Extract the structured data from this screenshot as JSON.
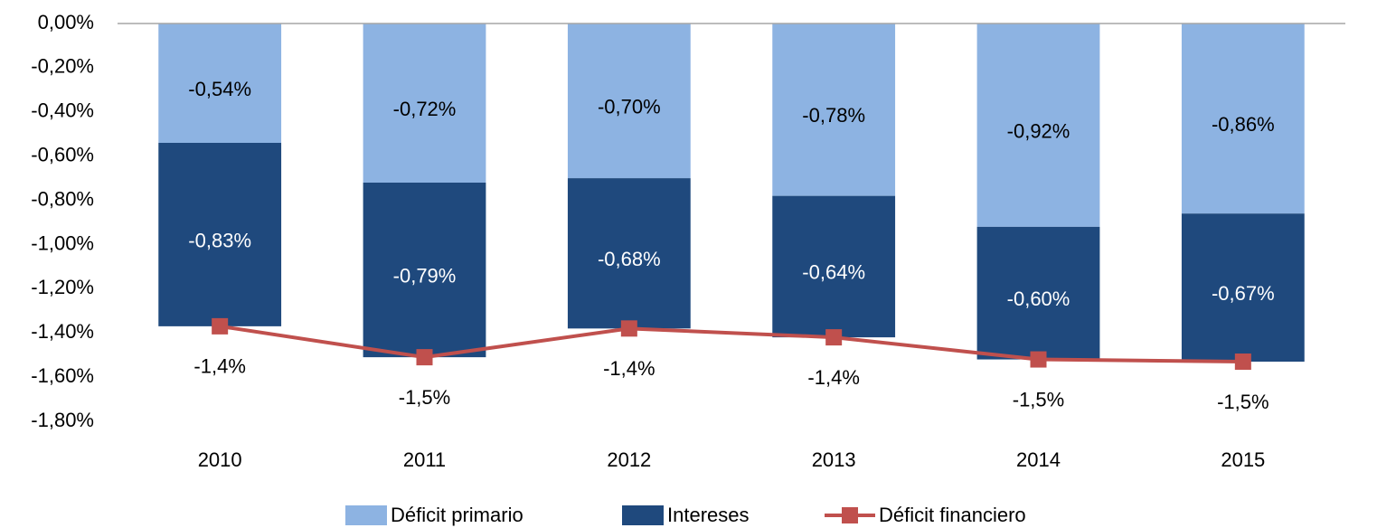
{
  "chart_data": {
    "type": "bar",
    "categories": [
      "2010",
      "2011",
      "2012",
      "2013",
      "2014",
      "2015"
    ],
    "ylim": [
      -1.8,
      0
    ],
    "yticks": [
      {
        "value": 0,
        "label": "0,00%"
      },
      {
        "value": -0.2,
        "label": "-0,20%"
      },
      {
        "value": -0.4,
        "label": "-0,40%"
      },
      {
        "value": -0.6,
        "label": "-0,60%"
      },
      {
        "value": -0.8,
        "label": "-0,80%"
      },
      {
        "value": -1.0,
        "label": "-1,00%"
      },
      {
        "value": -1.2,
        "label": "-1,20%"
      },
      {
        "value": -1.4,
        "label": "-1,40%"
      },
      {
        "value": -1.6,
        "label": "-1,60%"
      },
      {
        "value": -1.8,
        "label": "-1,80%"
      }
    ],
    "series": [
      {
        "name": "Déficit primario",
        "type": "bar",
        "color": "#8db3e2",
        "values": [
          -0.54,
          -0.72,
          -0.7,
          -0.78,
          -0.92,
          -0.86
        ],
        "value_labels": [
          "-0,54%",
          "-0,72%",
          "-0,70%",
          "-0,78%",
          "-0,92%",
          "-0,86%"
        ]
      },
      {
        "name": "Intereses",
        "type": "bar",
        "color": "#1f497d",
        "values": [
          -0.83,
          -0.79,
          -0.68,
          -0.64,
          -0.6,
          -0.67
        ],
        "value_labels": [
          "-0,83%",
          "-0,79%",
          "-0,68%",
          "-0,64%",
          "-0,60%",
          "-0,67%"
        ]
      },
      {
        "name": "Déficit financiero",
        "type": "line",
        "color": "#c0504d",
        "values": [
          -1.37,
          -1.51,
          -1.38,
          -1.42,
          -1.52,
          -1.53
        ],
        "value_labels": [
          "-1,4%",
          "-1,5%",
          "-1,4%",
          "-1,4%",
          "-1,5%",
          "-1,5%"
        ]
      }
    ],
    "legend": "bottom"
  }
}
